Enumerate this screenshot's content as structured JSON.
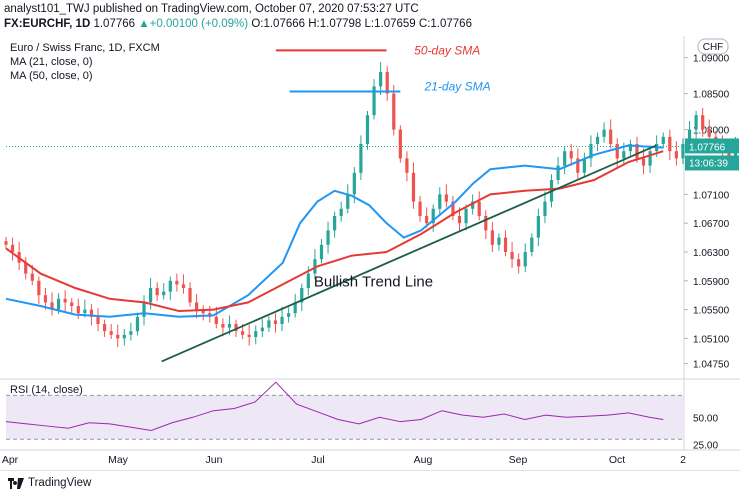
{
  "header": {
    "published": "analyst101_TWJ published on TradingView.com, October 07, 2020 07:53:27 UTC",
    "symbol": "FX:EURCHF, 1D",
    "last": "1.07766",
    "change": "+0.00100 (+0.09%)",
    "o_label": "O:",
    "o": "1.07666",
    "h_label": "H:",
    "h": "1.07798",
    "l_label": "L:",
    "l": "1.07659",
    "c_label": "C:",
    "c": "1.07766"
  },
  "legend": {
    "instrument": "Euro / Swiss Franc, 1D, FXCM",
    "ma21": "MA (21, close, 0)",
    "ma50": "MA (50, close, 0)",
    "rsi": "RSI (14, close)"
  },
  "footer": {
    "logo": "TradingView"
  },
  "colors": {
    "up": "#26a69a",
    "down": "#ef5350",
    "ma21": "#2196f3",
    "ma50": "#e53935",
    "trend": "#1b5e46",
    "rsi": "#9c27b0",
    "rsi_band": "#ede7f6"
  },
  "chart_data": [
    {
      "type": "candlestick",
      "currency_badge": "CHF",
      "ylim": [
        1.0455,
        1.093
      ],
      "y_ticks": [
        "1.09000",
        "1.08500",
        "1.08000",
        "1.07100",
        "1.06700",
        "1.06300",
        "1.05900",
        "1.05500",
        "1.05100",
        "1.04750"
      ],
      "x_ticks": [
        "Apr",
        "May",
        "Jun",
        "Jul",
        "Aug",
        "Sep",
        "Oct",
        "2"
      ],
      "last_price_label": "1.07766",
      "countdown_label": "13:06:39",
      "annotations": [
        {
          "text": "50-day SMA",
          "color": "#e53935"
        },
        {
          "text": "21-day SMA",
          "color": "#2196f3"
        },
        {
          "text": "Bullish Trend Line",
          "color": "#131722"
        }
      ],
      "series": [
        {
          "name": "MA (21, close, 0)",
          "type": "line",
          "x": [
            0,
            10,
            20,
            30,
            40,
            50,
            60,
            70,
            80,
            85,
            90,
            95,
            100,
            105,
            110,
            115,
            120,
            125,
            130,
            135,
            140,
            150,
            160,
            170,
            180,
            190
          ],
          "values": [
            1.0565,
            1.0555,
            1.0543,
            1.054,
            1.0545,
            1.054,
            1.0542,
            1.057,
            1.0615,
            1.067,
            1.07,
            1.0715,
            1.0708,
            1.0695,
            1.067,
            1.065,
            1.066,
            1.068,
            1.07,
            1.0725,
            1.0745,
            1.075,
            1.0745,
            1.0765,
            1.0778,
            1.0775
          ]
        },
        {
          "name": "MA (50, close, 0)",
          "type": "line",
          "x": [
            0,
            10,
            20,
            30,
            40,
            50,
            60,
            70,
            80,
            90,
            100,
            110,
            120,
            130,
            140,
            150,
            160,
            170,
            180,
            190
          ],
          "values": [
            1.0635,
            1.06,
            1.058,
            1.0565,
            1.056,
            1.0548,
            1.055,
            1.056,
            1.0585,
            1.061,
            1.0625,
            1.063,
            1.0655,
            1.0685,
            1.071,
            1.0715,
            1.0718,
            1.073,
            1.0755,
            1.077
          ]
        },
        {
          "name": "Bullish Trend Line",
          "type": "line",
          "x": [
            45,
            188
          ],
          "values": [
            1.0478,
            1.0778
          ]
        },
        {
          "name": "50-day SMA",
          "type": "line",
          "x": [
            78,
            110
          ],
          "values": [
            1.091,
            1.091
          ]
        },
        {
          "name": "21-day SMA",
          "type": "line",
          "x": [
            82,
            114
          ],
          "values": [
            1.0853,
            1.0853
          ]
        }
      ],
      "candles": {
        "start_x": 0,
        "step": 1.9,
        "close": [
          1.064,
          1.063,
          1.0615,
          1.06,
          1.059,
          1.057,
          1.056,
          1.055,
          1.0565,
          1.056,
          1.0555,
          1.0545,
          1.055,
          1.054,
          1.053,
          1.052,
          1.0515,
          1.051,
          1.0515,
          1.052,
          1.054,
          1.056,
          1.058,
          1.057,
          1.0575,
          1.059,
          1.0585,
          1.058,
          1.056,
          1.055,
          1.0545,
          1.054,
          1.053,
          1.0525,
          1.053,
          1.052,
          1.0515,
          1.0512,
          1.052,
          1.0525,
          1.0535,
          1.053,
          1.054,
          1.0545,
          1.056,
          1.058,
          1.06,
          1.062,
          1.064,
          1.066,
          1.068,
          1.069,
          1.071,
          1.074,
          1.078,
          1.082,
          1.086,
          1.088,
          1.085,
          1.08,
          1.076,
          1.074,
          1.07,
          1.068,
          1.067,
          1.069,
          1.071,
          1.07,
          1.068,
          1.067,
          1.069,
          1.07,
          1.068,
          1.066,
          1.064,
          1.065,
          1.063,
          1.062,
          1.061,
          1.063,
          1.065,
          1.068,
          1.07,
          1.073,
          1.075,
          1.077,
          1.076,
          1.074,
          1.076,
          1.078,
          1.079,
          1.08,
          1.078,
          1.076,
          1.077,
          1.078,
          1.076,
          1.075,
          1.077,
          1.078,
          1.079,
          1.077,
          1.076,
          1.078,
          1.08,
          1.082,
          1.08,
          1.079,
          1.078,
          1.077,
          1.076,
          1.078,
          1.079,
          1.08,
          1.082,
          1.081,
          1.08,
          1.078,
          1.077,
          1.076,
          1.078,
          1.079,
          1.08,
          1.078,
          1.077,
          1.076,
          1.078,
          1.08,
          1.079,
          1.078,
          1.0777
        ]
      }
    },
    {
      "type": "line",
      "title": "RSI (14, close)",
      "ylim": [
        22,
        84
      ],
      "y_ticks": [
        "50.00",
        "25.00"
      ],
      "band": [
        30,
        70
      ],
      "series": [
        {
          "name": "RSI (14, close)",
          "x": [
            0,
            6,
            12,
            18,
            24,
            30,
            36,
            42,
            48,
            54,
            60,
            66,
            72,
            78,
            84,
            90,
            96,
            102,
            108,
            114,
            120,
            126,
            132,
            138,
            144,
            150,
            156,
            162,
            168,
            174,
            180,
            186,
            190
          ],
          "values": [
            46,
            44,
            42,
            40,
            45,
            44,
            41,
            38,
            45,
            50,
            56,
            58,
            64,
            82,
            62,
            55,
            48,
            44,
            50,
            46,
            48,
            56,
            52,
            50,
            53,
            48,
            52,
            50,
            51,
            52,
            54,
            50,
            48
          ]
        }
      ]
    }
  ]
}
